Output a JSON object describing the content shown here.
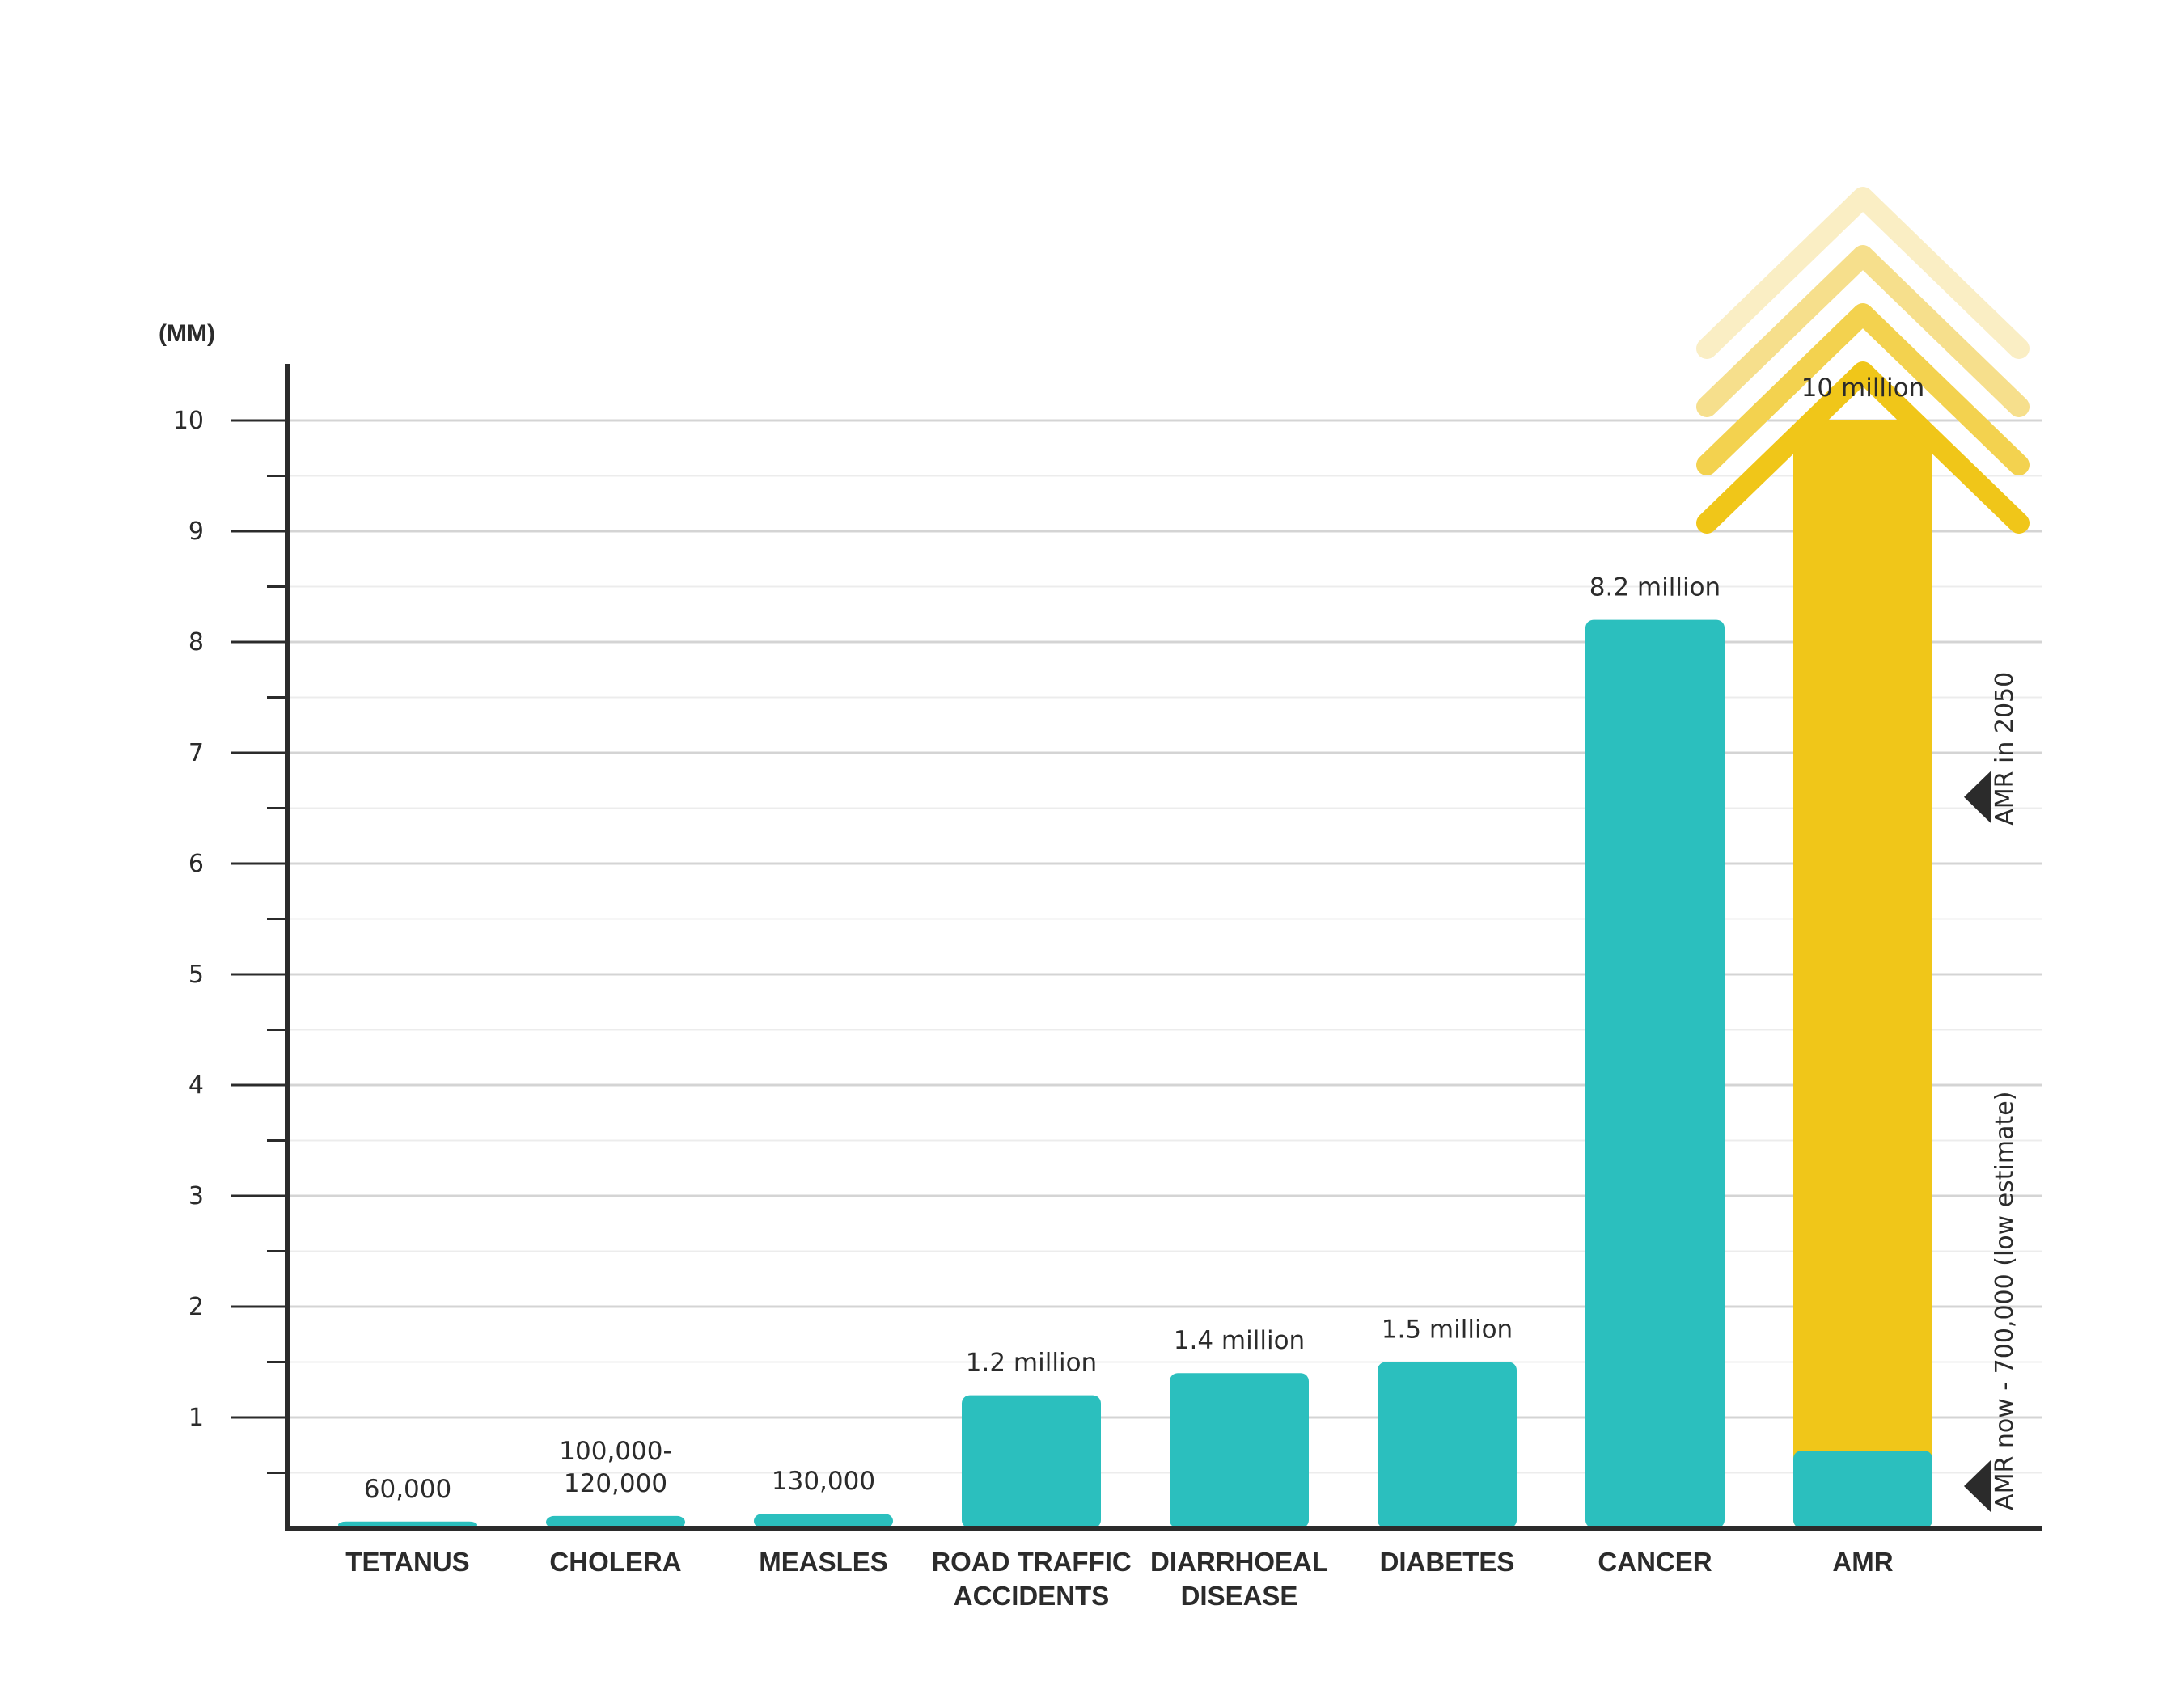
{
  "chart_data": {
    "type": "bar",
    "unit_label": "(MM)",
    "ylim": [
      0,
      10
    ],
    "y_ticks": [
      "1",
      "2",
      "3",
      "4",
      "5",
      "6",
      "7",
      "8",
      "9",
      "10"
    ],
    "grid": true,
    "categories": [
      {
        "lines": [
          "TETANUS"
        ]
      },
      {
        "lines": [
          "CHOLERA"
        ]
      },
      {
        "lines": [
          "MEASLES"
        ]
      },
      {
        "lines": [
          "ROAD TRAFFIC",
          "ACCIDENTS"
        ]
      },
      {
        "lines": [
          "DIARRHOEAL",
          "DISEASE"
        ]
      },
      {
        "lines": [
          "DIABETES"
        ]
      },
      {
        "lines": [
          "CANCER"
        ]
      },
      {
        "lines": [
          "AMR"
        ]
      }
    ],
    "values": [
      0.06,
      0.11,
      0.13,
      1.2,
      1.4,
      1.5,
      8.2,
      10
    ],
    "value_labels": [
      [
        "60,000"
      ],
      [
        "100,000-",
        "120,000"
      ],
      [
        "130,000"
      ],
      [
        "1.2 million"
      ],
      [
        "1.4 million"
      ],
      [
        "1.5 million"
      ],
      [
        "8.2 million"
      ],
      [
        "10 million"
      ]
    ],
    "amr_now_value": 0.7,
    "annotations": [
      "AMR in 2050",
      "AMR now - 700,000 (low estimate)"
    ],
    "colors": {
      "bar": "#2bbfbe",
      "amr_2050": "#f0c619",
      "axis": "#2b2b2b",
      "grid_major": "#d4d4d4",
      "grid_minor": "#ececec",
      "chevrons": [
        "#f0c619",
        "#f3d24f",
        "#f6df8c",
        "#faeec4"
      ]
    }
  }
}
